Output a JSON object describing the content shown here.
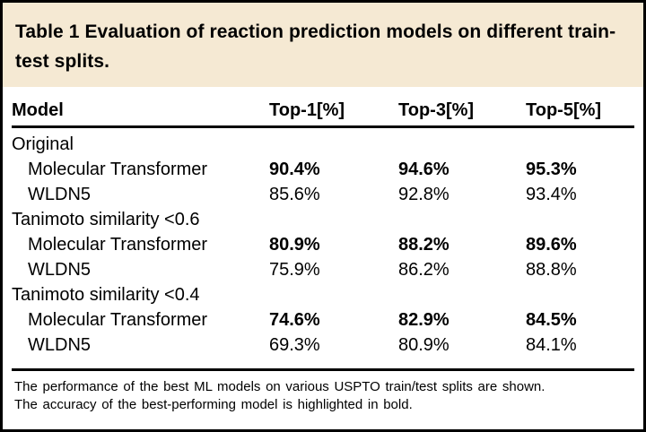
{
  "title": {
    "text": "Table 1 Evaluation of reaction prediction models on different train-test splits."
  },
  "table": {
    "columns": [
      "Model",
      "Top-1[%]",
      "Top-3[%]",
      "Top-5[%]"
    ],
    "rows": [
      {
        "type": "section",
        "label": "Original"
      },
      {
        "type": "model",
        "name": "Molecular Transformer",
        "top1": "90.4%",
        "top3": "94.6%",
        "top5": "95.3%",
        "best": true
      },
      {
        "type": "model",
        "name": "WLDN5",
        "top1": "85.6%",
        "top3": "92.8%",
        "top5": "93.4%",
        "best": false
      },
      {
        "type": "section",
        "label": "Tanimoto similarity <0.6"
      },
      {
        "type": "model",
        "name": "Molecular Transformer",
        "top1": "80.9%",
        "top3": "88.2%",
        "top5": "89.6%",
        "best": true
      },
      {
        "type": "model",
        "name": "WLDN5",
        "top1": "75.9%",
        "top3": "86.2%",
        "top5": "88.8%",
        "best": false
      },
      {
        "type": "section",
        "label": "Tanimoto similarity <0.4"
      },
      {
        "type": "model",
        "name": "Molecular Transformer",
        "top1": "74.6%",
        "top3": "82.9%",
        "top5": "84.5%",
        "best": true
      },
      {
        "type": "model",
        "name": "WLDN5",
        "top1": "69.3%",
        "top3": "80.9%",
        "top5": "84.1%",
        "best": false
      }
    ]
  },
  "footnote": {
    "line1": "The performance of the best ML models on various USPTO train/test splits are shown.",
    "line2": "The accuracy of the best-performing model is highlighted in bold."
  },
  "colors": {
    "header_bg": "#F5E9D3",
    "border": "#000000",
    "text": "#000000"
  }
}
